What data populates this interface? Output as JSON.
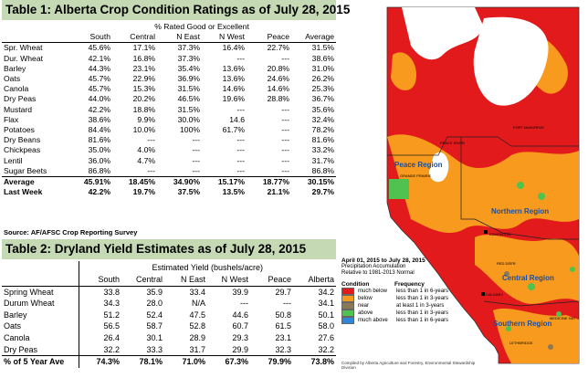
{
  "table1": {
    "title": "Table 1: Alberta Crop Condition Ratings as of July 28, 2015",
    "header": "% Rated Good or Excellent",
    "columns": [
      "South",
      "Central",
      "N East",
      "N West",
      "Peace",
      "Average"
    ],
    "rows": [
      {
        "label": "Spr. Wheat",
        "values": [
          "45.6%",
          "17.1%",
          "37.3%",
          "16.4%",
          "22.7%",
          "31.5%"
        ]
      },
      {
        "label": "Dur. Wheat",
        "values": [
          "42.1%",
          "16.8%",
          "37.3%",
          "---",
          "---",
          "38.6%"
        ]
      },
      {
        "label": "Barley",
        "values": [
          "44.3%",
          "23.1%",
          "35.4%",
          "13.6%",
          "20.8%",
          "31.0%"
        ]
      },
      {
        "label": "Oats",
        "values": [
          "45.7%",
          "22.9%",
          "36.9%",
          "13.6%",
          "24.6%",
          "26.2%"
        ]
      },
      {
        "label": "Canola",
        "values": [
          "45.7%",
          "15.3%",
          "31.5%",
          "14.6%",
          "14.6%",
          "25.3%"
        ]
      },
      {
        "label": "Dry Peas",
        "values": [
          "44.0%",
          "20.2%",
          "46.5%",
          "19.6%",
          "28.8%",
          "36.7%"
        ]
      },
      {
        "label": "Mustard",
        "values": [
          "42.2%",
          "18.8%",
          "31.5%",
          "---",
          "---",
          "35.6%"
        ]
      },
      {
        "label": "Flax",
        "values": [
          "38.6%",
          "9.9%",
          "30.0%",
          "14.6",
          "---",
          "32.4%"
        ]
      },
      {
        "label": "Potatoes",
        "values": [
          "84.4%",
          "10.0%",
          "100%",
          "61.7%",
          "---",
          "78.2%"
        ]
      },
      {
        "label": "Dry Beans",
        "values": [
          "81.6%",
          "---",
          "---",
          "---",
          "---",
          "81.6%"
        ]
      },
      {
        "label": "Chickpeas",
        "values": [
          "35.0%",
          "4.0%",
          "---",
          "---",
          "---",
          "33.2%"
        ]
      },
      {
        "label": "Lentil",
        "values": [
          "36.0%",
          "4.7%",
          "---",
          "---",
          "---",
          "31.7%"
        ]
      },
      {
        "label": "Sugar Beets",
        "values": [
          "86.8%",
          "---",
          "---",
          "---",
          "---",
          "86.8%"
        ]
      }
    ],
    "summary": [
      {
        "label": "Average",
        "values": [
          "45.91%",
          "18.45%",
          "34.90%",
          "15.17%",
          "18.77%",
          "30.15%"
        ]
      },
      {
        "label": "Last Week",
        "values": [
          "42.2%",
          "19.7%",
          "37.5%",
          "13.5%",
          "21.1%",
          "29.7%"
        ]
      }
    ],
    "source": "Source: AF/AFSC Crop Reporting Survey"
  },
  "table2": {
    "title": "Table 2: Dryland Yield Estimates as of July 28, 2015",
    "header": "Estimated  Yield  (bushels/acre)",
    "columns": [
      "South",
      "Central",
      "N East",
      "N West",
      "Peace",
      "Alberta"
    ],
    "rows": [
      {
        "label": "Spring Wheat",
        "values": [
          "33.8",
          "35.9",
          "33.4",
          "39.9",
          "29.7",
          "34.2"
        ]
      },
      {
        "label": "Durum Wheat",
        "values": [
          "34.3",
          "28.0",
          "N/A",
          "---",
          "---",
          "34.1"
        ]
      },
      {
        "label": "Barley",
        "values": [
          "51.2",
          "52.4",
          "47.5",
          "44.6",
          "50.8",
          "50.1"
        ]
      },
      {
        "label": "Oats",
        "values": [
          "56.5",
          "58.7",
          "52.8",
          "60.7",
          "61.5",
          "58.0"
        ]
      },
      {
        "label": "Canola",
        "values": [
          "26.4",
          "30.1",
          "28.9",
          "29.3",
          "23.1",
          "27.6"
        ]
      },
      {
        "label": "Dry Peas",
        "values": [
          "32.2",
          "33.3",
          "31.7",
          "29.9",
          "32.3",
          "32.2"
        ]
      }
    ],
    "summary": {
      "label": "% of 5 Year Ave",
      "values": [
        "74.3%",
        "78.1%",
        "71.0%",
        "67.3%",
        "79.9%",
        "73.8%"
      ]
    }
  },
  "map": {
    "regions": [
      "Peace Region",
      "Northern Region",
      "Central Region",
      "Southern Region"
    ],
    "places": [
      "FORT McMURRAY",
      "GRANDE PRAIRIE",
      "EDMONTON",
      "RED DEER",
      "CALGARY",
      "LETHBRIDGE",
      "MEDICINE HAT",
      "PEACE RIVER"
    ],
    "legend": {
      "date": "April 01, 2015 to July 28, 2015",
      "subtitle1": "Precipitation Accumulation",
      "subtitle2": "Relative to 1981-2013 Normal",
      "condition_header": "Condition",
      "frequency_header": "Frequency",
      "items": [
        {
          "condition": "much below",
          "frequency": "less than 1 in 6-years",
          "color": "#e31a1c"
        },
        {
          "condition": "below",
          "frequency": "less than 1 in 3-years",
          "color": "#f79a1e"
        },
        {
          "condition": "near",
          "frequency": "at least 1 in 3-years",
          "color": "#8a7a57"
        },
        {
          "condition": "above",
          "frequency": "less than 1 in 3-years",
          "color": "#4fc24f"
        },
        {
          "condition": "much above",
          "frequency": "less than 1 in 6-years",
          "color": "#2e86d6"
        }
      ],
      "credit": "Compiled by Alberta Agriculture and Forestry, Environmental Stewardship Division"
    },
    "colors": {
      "much_below": "#e31a1c",
      "below": "#f79a1e",
      "near": "#8a7a57",
      "above": "#4fc24f",
      "much_above": "#2e86d6"
    }
  }
}
